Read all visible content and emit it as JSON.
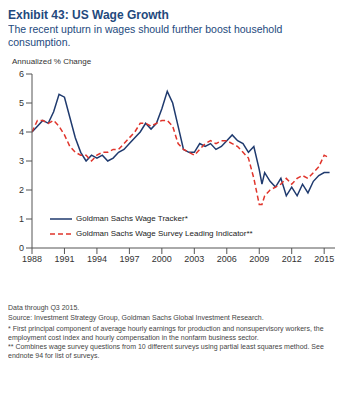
{
  "chart_data": {
    "type": "line",
    "title": "Exhibit 43: US Wage Growth",
    "subtitle": "The recent upturn in wages should further boost household consumption.",
    "ylabel": "Annualized % Change",
    "annotations": [
      "Data through Q3 2015.",
      "Source: Investment Strategy Group, Goldman Sachs Global Investment Research.",
      "* First principal component of average hourly earnings for production and nonsupervisory workers, the employment cost index and hourly compensation in the nonfarm business sector.",
      "** Combines wage survey questions from 10 different surveys using partial least squares method. See endnote 94 for list of surveys."
    ],
    "x": [
      1988.0,
      1988.5,
      1989.0,
      1989.5,
      1990.0,
      1990.5,
      1991.0,
      1991.5,
      1992.0,
      1992.5,
      1993.0,
      1993.5,
      1994.0,
      1994.5,
      1995.0,
      1995.5,
      1996.0,
      1996.5,
      1997.0,
      1997.5,
      1998.0,
      1998.5,
      1999.0,
      1999.5,
      2000.0,
      2000.5,
      2001.0,
      2001.5,
      2002.0,
      2002.5,
      2003.0,
      2003.5,
      2004.0,
      2004.5,
      2005.0,
      2005.5,
      2006.0,
      2006.5,
      2007.0,
      2007.5,
      2008.0,
      2008.5,
      2009.0,
      2009.25,
      2009.5,
      2010.0,
      2010.5,
      2011.0,
      2011.5,
      2012.0,
      2012.5,
      2013.0,
      2013.5,
      2014.0,
      2014.5,
      2015.0,
      2015.5
    ],
    "series": [
      {
        "name": "Goldman Sachs Wage Tracker*",
        "color": "#1f3a6e",
        "line_style": "solid",
        "values": [
          4.0,
          4.2,
          4.4,
          4.3,
          4.7,
          5.3,
          5.2,
          4.5,
          3.8,
          3.3,
          3.0,
          3.2,
          3.1,
          3.2,
          3.0,
          3.1,
          3.3,
          3.4,
          3.6,
          3.8,
          4.0,
          4.3,
          4.1,
          4.3,
          4.8,
          5.4,
          5.0,
          4.2,
          3.4,
          3.3,
          3.3,
          3.6,
          3.5,
          3.6,
          3.4,
          3.5,
          3.7,
          3.9,
          3.7,
          3.6,
          3.3,
          3.5,
          2.7,
          2.2,
          2.6,
          2.3,
          2.1,
          2.4,
          1.8,
          2.1,
          1.8,
          2.2,
          1.9,
          2.3,
          2.5,
          2.6,
          2.6
        ]
      },
      {
        "name": "Goldman Sachs Wage Survey Leading Indicator**",
        "color": "#e0342b",
        "line_style": "dashed",
        "values": [
          4.0,
          4.4,
          4.4,
          4.3,
          4.4,
          4.2,
          3.9,
          3.5,
          3.3,
          3.2,
          3.2,
          3.0,
          3.2,
          3.3,
          3.3,
          3.4,
          3.4,
          3.6,
          3.8,
          4.0,
          4.3,
          4.3,
          4.2,
          4.3,
          4.4,
          4.4,
          4.2,
          3.6,
          3.4,
          3.3,
          3.2,
          3.4,
          3.6,
          3.7,
          3.6,
          3.7,
          3.7,
          3.6,
          3.5,
          3.3,
          3.1,
          2.4,
          1.5,
          1.5,
          1.8,
          2.0,
          2.1,
          2.2,
          2.4,
          2.2,
          2.4,
          2.5,
          2.4,
          2.6,
          2.8,
          3.2,
          3.1
        ]
      }
    ],
    "xlim": [
      1988,
      2016
    ],
    "xticks": [
      1988,
      1991,
      1994,
      1997,
      2000,
      2003,
      2006,
      2009,
      2012,
      2015
    ],
    "ylim": [
      0,
      6
    ],
    "yticks": [
      0,
      1,
      2,
      3,
      4,
      5,
      6
    ],
    "legend": "lower left",
    "grid": false
  }
}
